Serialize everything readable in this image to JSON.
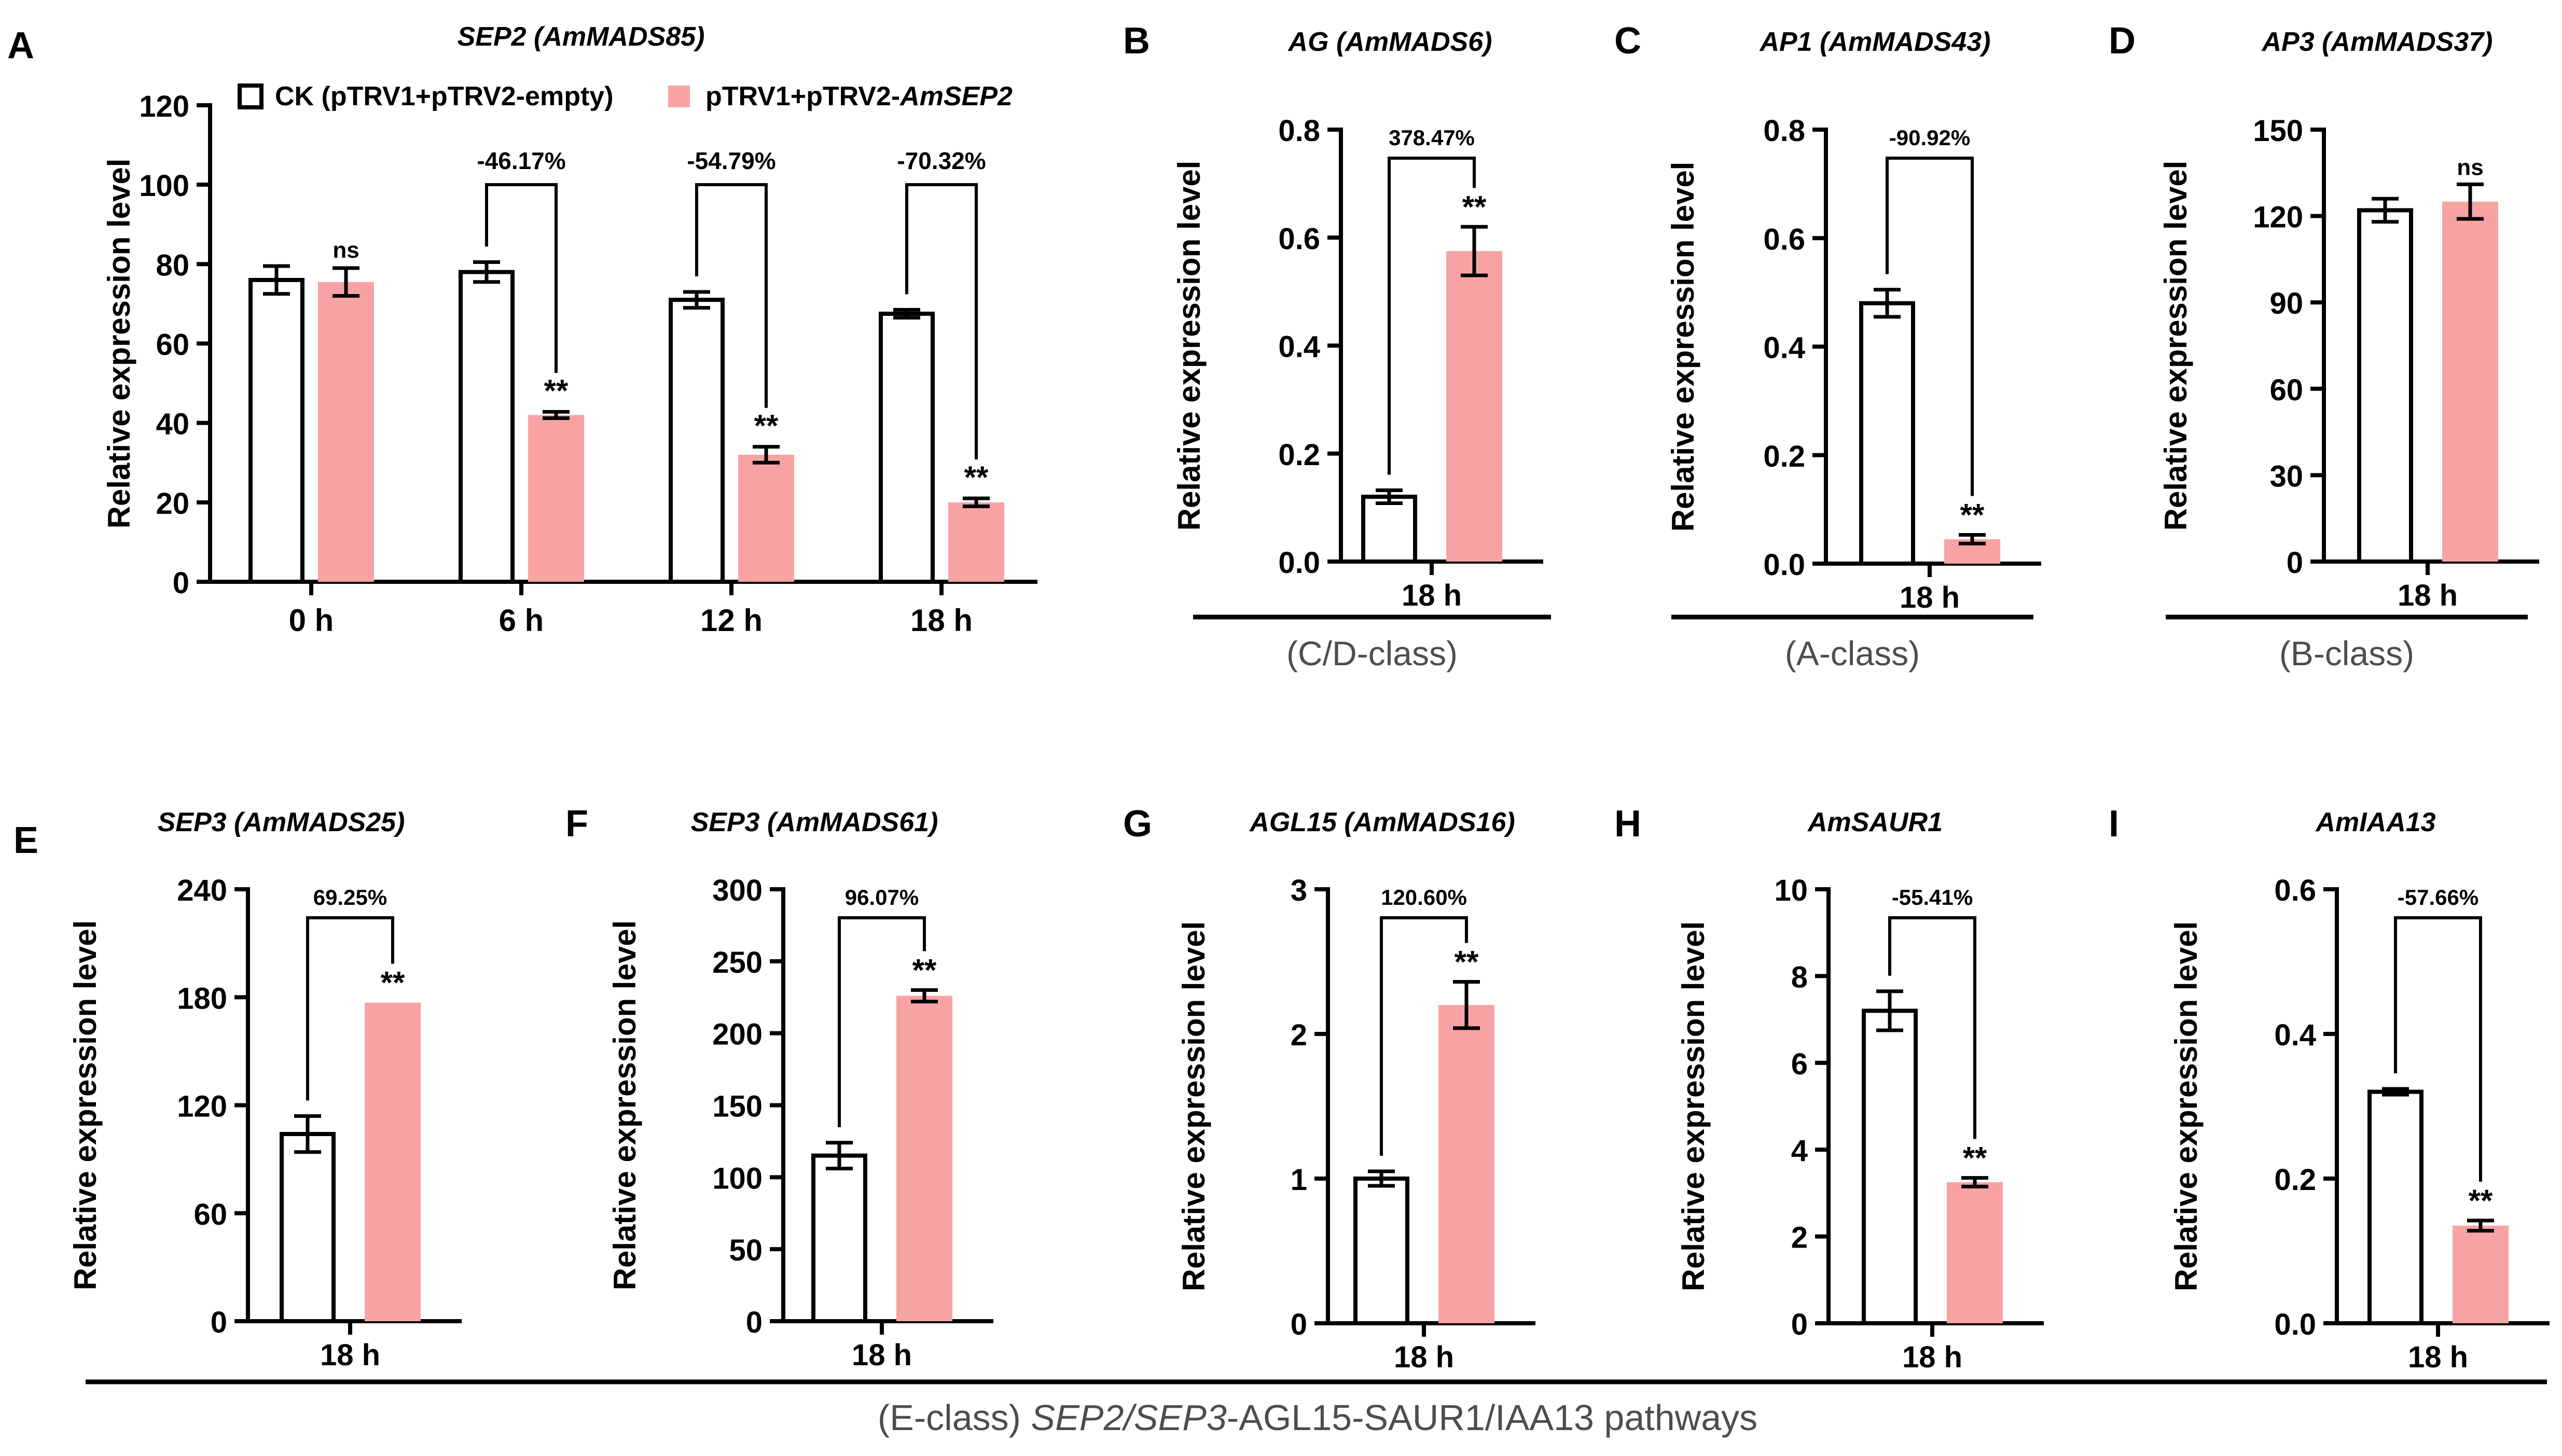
{
  "legend": {
    "ck_label": "CK (pTRV1+pTRV2-empty)",
    "treat_label_prefix": "pTRV1+pTRV2-",
    "treat_label_gene": "AmSEP2"
  },
  "colors": {
    "ck_fill": "#ffffff",
    "treat_fill": "#f8a3a3",
    "stroke": "#000000"
  },
  "common": {
    "ylabel": "Relative expression level"
  },
  "groups": [
    {
      "label": "(C/D-class)"
    },
    {
      "label": "(A-class)"
    },
    {
      "label": "(B-class)"
    }
  ],
  "bottom_caption": {
    "part1": "(E-class) ",
    "part2": "SEP2/SEP3",
    "part3": "-AGL15-SAUR1/IAA13 pathways"
  },
  "chart_data": [
    {
      "panel": "A",
      "type": "bar",
      "title": "SEP2 (AmMADS85)",
      "ylabel": "Relative expression level",
      "ylim": [
        0,
        120
      ],
      "yticks": [
        0,
        20,
        40,
        60,
        80,
        100,
        120
      ],
      "categories": [
        "0 h",
        "6 h",
        "12 h",
        "18 h"
      ],
      "series": [
        {
          "name": "CK (pTRV1+pTRV2-empty)",
          "values": [
            76,
            78,
            71,
            67.5
          ],
          "errors": [
            3.5,
            2.5,
            2,
            1
          ]
        },
        {
          "name": "pTRV1+pTRV2-AmSEP2",
          "values": [
            75.5,
            42,
            32,
            20
          ],
          "errors": [
            3.5,
            0.8,
            2,
            1
          ]
        }
      ],
      "significance": [
        "ns",
        "**",
        "**",
        "**"
      ],
      "percent_change": [
        "",
        "-46.17%",
        "-54.79%",
        "-70.32%"
      ]
    },
    {
      "panel": "B",
      "type": "bar",
      "title": "AG (AmMADS6)",
      "ylabel": "Relative expression level",
      "ylim": [
        0,
        0.8
      ],
      "yticks": [
        "0.0",
        "0.2",
        "0.4",
        "0.6",
        "0.8"
      ],
      "category": "18 h",
      "values": [
        0.12,
        0.575
      ],
      "errors": [
        0.012,
        0.045
      ],
      "significance": "**",
      "percent_change": "378.47%"
    },
    {
      "panel": "C",
      "type": "bar",
      "title": "AP1 (AmMADS43)",
      "ylabel": "Relative expression level",
      "ylim": [
        0,
        0.8
      ],
      "yticks": [
        "0.0",
        "0.2",
        "0.4",
        "0.6",
        "0.8"
      ],
      "category": "18 h",
      "values": [
        0.48,
        0.045
      ],
      "errors": [
        0.025,
        0.008
      ],
      "significance": "**",
      "percent_change": "-90.92%"
    },
    {
      "panel": "D",
      "type": "bar",
      "title": "AP3 (AmMADS37)",
      "ylabel": "Relative expression level",
      "ylim": [
        0,
        150
      ],
      "yticks": [
        "0",
        "30",
        "60",
        "90",
        "120",
        "150"
      ],
      "category": "18 h",
      "values": [
        122,
        125
      ],
      "errors": [
        4,
        6
      ],
      "significance": "ns",
      "percent_change": ""
    },
    {
      "panel": "E",
      "type": "bar",
      "title": "SEP3 (AmMADS25)",
      "ylabel": "Relative expression level",
      "ylim": [
        0,
        240
      ],
      "yticks": [
        "0",
        "60",
        "120",
        "180",
        "240"
      ],
      "category": "18 h",
      "values": [
        104,
        177
      ],
      "errors": [
        10,
        0
      ],
      "significance": "**",
      "percent_change": "69.25%"
    },
    {
      "panel": "F",
      "type": "bar",
      "title": "SEP3 (AmMADS61)",
      "ylabel": "Relative expression level",
      "ylim": [
        0,
        300
      ],
      "yticks": [
        "0",
        "50",
        "100",
        "150",
        "200",
        "250",
        "300"
      ],
      "category": "18 h",
      "values": [
        115,
        226
      ],
      "errors": [
        9,
        4
      ],
      "significance": "**",
      "percent_change": "96.07%"
    },
    {
      "panel": "G",
      "type": "bar",
      "title": "AGL15 (AmMADS16)",
      "ylabel": "Relative expression level",
      "ylim": [
        0,
        3
      ],
      "yticks": [
        "0",
        "1",
        "2",
        "3"
      ],
      "category": "18 h",
      "values": [
        1.0,
        2.2
      ],
      "errors": [
        0.05,
        0.16
      ],
      "significance": "**",
      "percent_change": "120.60%"
    },
    {
      "panel": "H",
      "type": "bar",
      "title": "AmSAUR1",
      "ylabel": "Relative expression level",
      "ylim": [
        0,
        10
      ],
      "yticks": [
        "0",
        "2",
        "4",
        "6",
        "8",
        "10"
      ],
      "category": "18 h",
      "values": [
        7.2,
        3.25
      ],
      "errors": [
        0.45,
        0.1
      ],
      "significance": "**",
      "percent_change": "-55.41%"
    },
    {
      "panel": "I",
      "type": "bar",
      "title": "AmIAA13",
      "ylabel": "Relative expression level",
      "ylim": [
        0,
        0.6
      ],
      "yticks": [
        "0.0",
        "0.2",
        "0.4",
        "0.6"
      ],
      "category": "18 h",
      "values": [
        0.32,
        0.135
      ],
      "errors": [
        0.004,
        0.007
      ],
      "significance": "**",
      "percent_change": "-57.66%"
    }
  ]
}
